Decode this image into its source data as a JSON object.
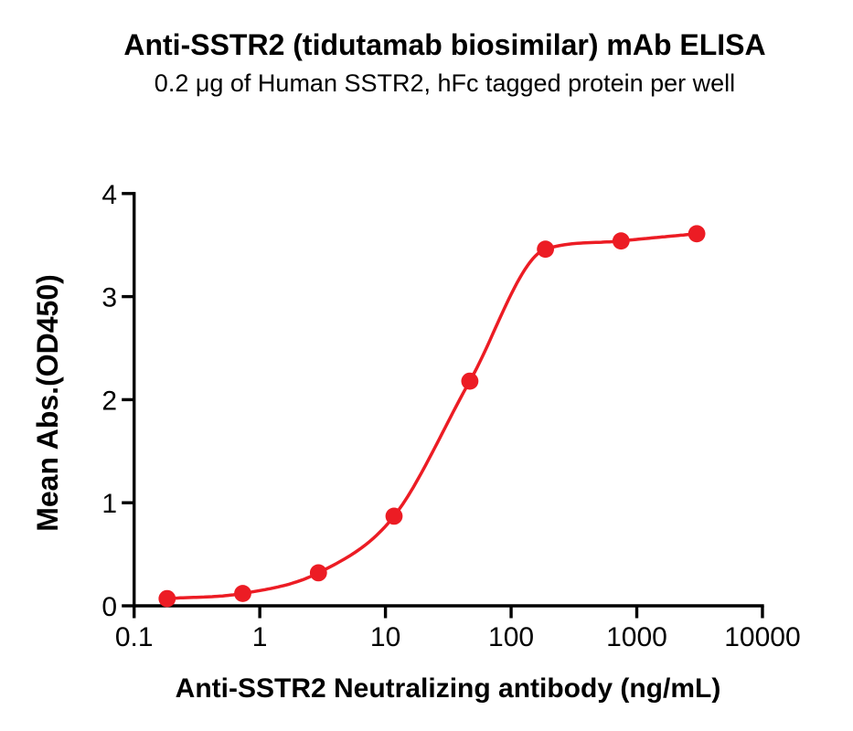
{
  "chart_data": {
    "type": "scatter",
    "title": "Anti-SSTR2 (tidutamab biosimilar) mAb ELISA",
    "subtitle": "0.2 μg of Human SSTR2, hFc tagged protein per well",
    "xlabel": "Anti-SSTR2 Neutralizing antibody (ng/mL)",
    "ylabel": "Mean Abs.(OD450)",
    "x_scale": "log10",
    "xlim": [
      0.1,
      10000
    ],
    "ylim": [
      0,
      4
    ],
    "grid": false,
    "legend": "none",
    "x_ticks": [
      0.1,
      1,
      10,
      100,
      1000,
      10000
    ],
    "x_tick_labels": [
      "0.1",
      "1",
      "10",
      "100",
      "1000",
      "10000"
    ],
    "y_ticks": [
      0,
      1,
      2,
      3,
      4
    ],
    "y_tick_labels": [
      "0",
      "1",
      "2",
      "3",
      "4"
    ],
    "axis_color": "#000000",
    "series": [
      {
        "name": "Anti-SSTR2 neutralizing antibody",
        "color": "#EC1C24",
        "marker": "circle",
        "fit": "sigmoidal dose-response curve",
        "x": [
          0.183,
          0.732,
          2.93,
          11.7,
          46.9,
          187.5,
          750,
          3000
        ],
        "y": [
          0.07,
          0.12,
          0.32,
          0.87,
          2.18,
          3.46,
          3.54,
          3.61
        ]
      }
    ]
  }
}
